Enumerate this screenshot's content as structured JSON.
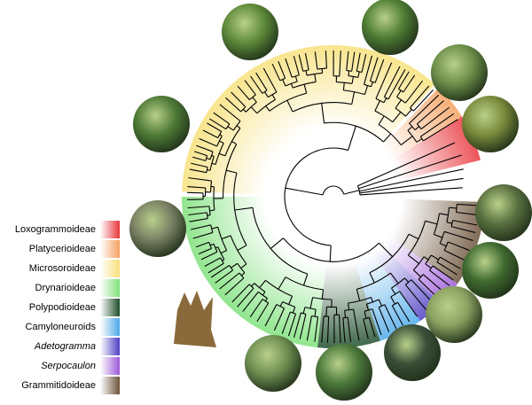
{
  "legend": {
    "items": [
      {
        "label": "Loxogrammoideae",
        "color": "#e8363c",
        "italic": false
      },
      {
        "label": "Platycerioideae",
        "color": "#f4a060",
        "italic": false
      },
      {
        "label": "Microsoroideae",
        "color": "#f7e07a",
        "italic": false
      },
      {
        "label": "Drynarioideae",
        "color": "#7de07a",
        "italic": false
      },
      {
        "label": "Polypodioideae",
        "color": "#1e4d2b",
        "italic": false
      },
      {
        "label": "Camyloneuroids",
        "color": "#4da9e8",
        "italic": false
      },
      {
        "label": "Adetogramma",
        "color": "#4e3fc4",
        "italic": true
      },
      {
        "label": "Serpocaulon",
        "color": "#9b59d8",
        "italic": true
      },
      {
        "label": "Grammitidoideae",
        "color": "#6b5238",
        "italic": false
      }
    ]
  }
}
